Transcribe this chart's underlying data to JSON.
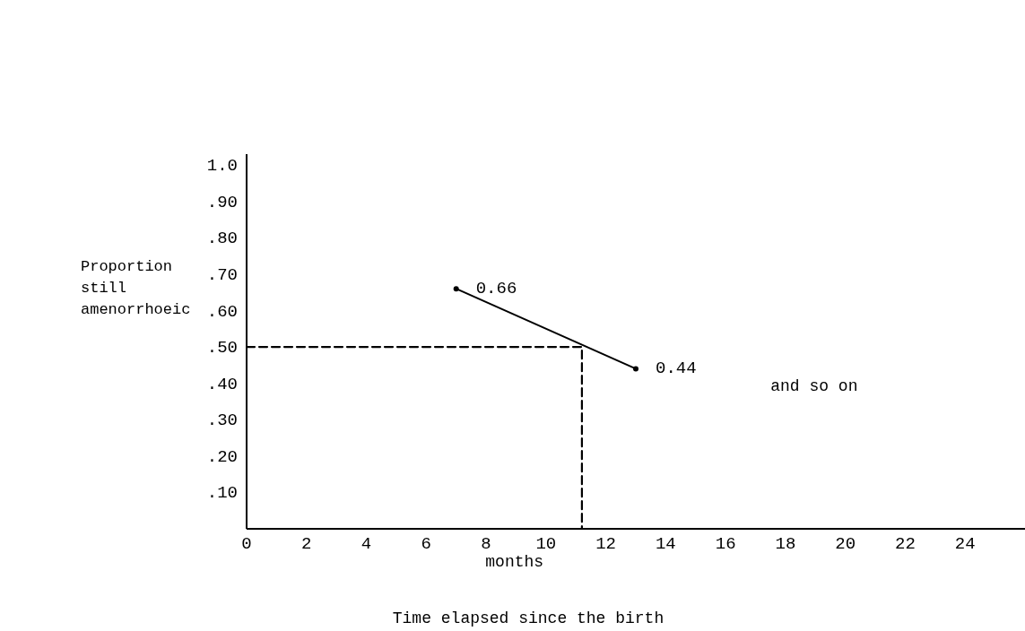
{
  "chart_data": {
    "type": "line",
    "xlabel": "months",
    "ylabel": "Proportion still amenorrhoeic",
    "xlim": [
      0,
      26
    ],
    "xticks": [
      0,
      2,
      4,
      6,
      8,
      10,
      12,
      14,
      16,
      18,
      20,
      22,
      24
    ],
    "ylim": [
      0,
      1.03
    ],
    "yticks": [
      {
        "value": 0.1,
        "label": ".10"
      },
      {
        "value": 0.2,
        "label": ".20"
      },
      {
        "value": 0.3,
        "label": ".30"
      },
      {
        "value": 0.4,
        "label": ".40"
      },
      {
        "value": 0.5,
        "label": ".50"
      },
      {
        "value": 0.6,
        "label": ".60"
      },
      {
        "value": 0.7,
        "label": ".70"
      },
      {
        "value": 0.8,
        "label": ".80"
      },
      {
        "value": 0.9,
        "label": ".90"
      },
      {
        "value": 1.0,
        "label": "1.0"
      }
    ],
    "grid": false,
    "series": [
      {
        "color": "#000000",
        "x": [
          7,
          13
        ],
        "values": [
          0.66,
          0.44
        ],
        "value_labels": [
          "0.66",
          "0.44"
        ],
        "marker": "circle",
        "line_style": "solid"
      },
      {
        "color": "#000000",
        "x": [
          0,
          11.2,
          11.2
        ],
        "values": [
          0.5,
          0.5,
          0
        ],
        "marker": "none",
        "line_style": "dashed"
      }
    ],
    "annotations": [
      "and so on",
      "Time elapsed since the birth"
    ]
  }
}
